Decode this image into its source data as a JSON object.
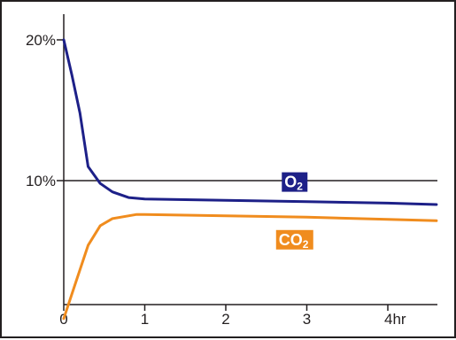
{
  "chart_data": {
    "type": "line",
    "xlabel": "",
    "ylabel": "",
    "x_ticks": [
      {
        "value": 0,
        "label": "0"
      },
      {
        "value": 1,
        "label": "1"
      },
      {
        "value": 2,
        "label": "2"
      },
      {
        "value": 3,
        "label": "3"
      },
      {
        "value": 4,
        "label": "4hr"
      }
    ],
    "y_ticks": [
      {
        "value": 10,
        "label": "10%"
      },
      {
        "value": 20,
        "label": "20%"
      }
    ],
    "xlim": [
      0,
      4.6
    ],
    "ylim": [
      0,
      22
    ],
    "grid": false,
    "reference_line": {
      "y": 10,
      "color": "#231f20"
    },
    "series": [
      {
        "name": "O2",
        "label_main": "O",
        "label_sub": "2",
        "color": "#1d2088",
        "label_bg": "#1d2088",
        "label_at": {
          "x": 2.85,
          "y": 9.9
        },
        "points": [
          {
            "x": 0,
            "y": 20
          },
          {
            "x": 0.1,
            "y": 17.5
          },
          {
            "x": 0.2,
            "y": 14.8
          },
          {
            "x": 0.3,
            "y": 11.0
          },
          {
            "x": 0.45,
            "y": 9.8
          },
          {
            "x": 0.6,
            "y": 9.2
          },
          {
            "x": 0.8,
            "y": 8.8
          },
          {
            "x": 1.0,
            "y": 8.7
          },
          {
            "x": 2.0,
            "y": 8.6
          },
          {
            "x": 3.0,
            "y": 8.5
          },
          {
            "x": 4.0,
            "y": 8.4
          },
          {
            "x": 4.6,
            "y": 8.3
          }
        ]
      },
      {
        "name": "CO2",
        "label_main": "CO",
        "label_sub": "2",
        "color": "#f08c1e",
        "label_bg": "#f08c1e",
        "label_at": {
          "x": 2.85,
          "y": 5.8
        },
        "points": [
          {
            "x": 0,
            "y": 0.2
          },
          {
            "x": 0.15,
            "y": 2.8
          },
          {
            "x": 0.3,
            "y": 5.4
          },
          {
            "x": 0.45,
            "y": 6.8
          },
          {
            "x": 0.6,
            "y": 7.3
          },
          {
            "x": 0.9,
            "y": 7.6
          },
          {
            "x": 1.0,
            "y": 7.6
          },
          {
            "x": 2.0,
            "y": 7.5
          },
          {
            "x": 3.0,
            "y": 7.4
          },
          {
            "x": 4.0,
            "y": 7.25
          },
          {
            "x": 4.6,
            "y": 7.15
          }
        ]
      }
    ]
  },
  "colors": {
    "axis": "#231f20",
    "background": "#ffffff"
  }
}
